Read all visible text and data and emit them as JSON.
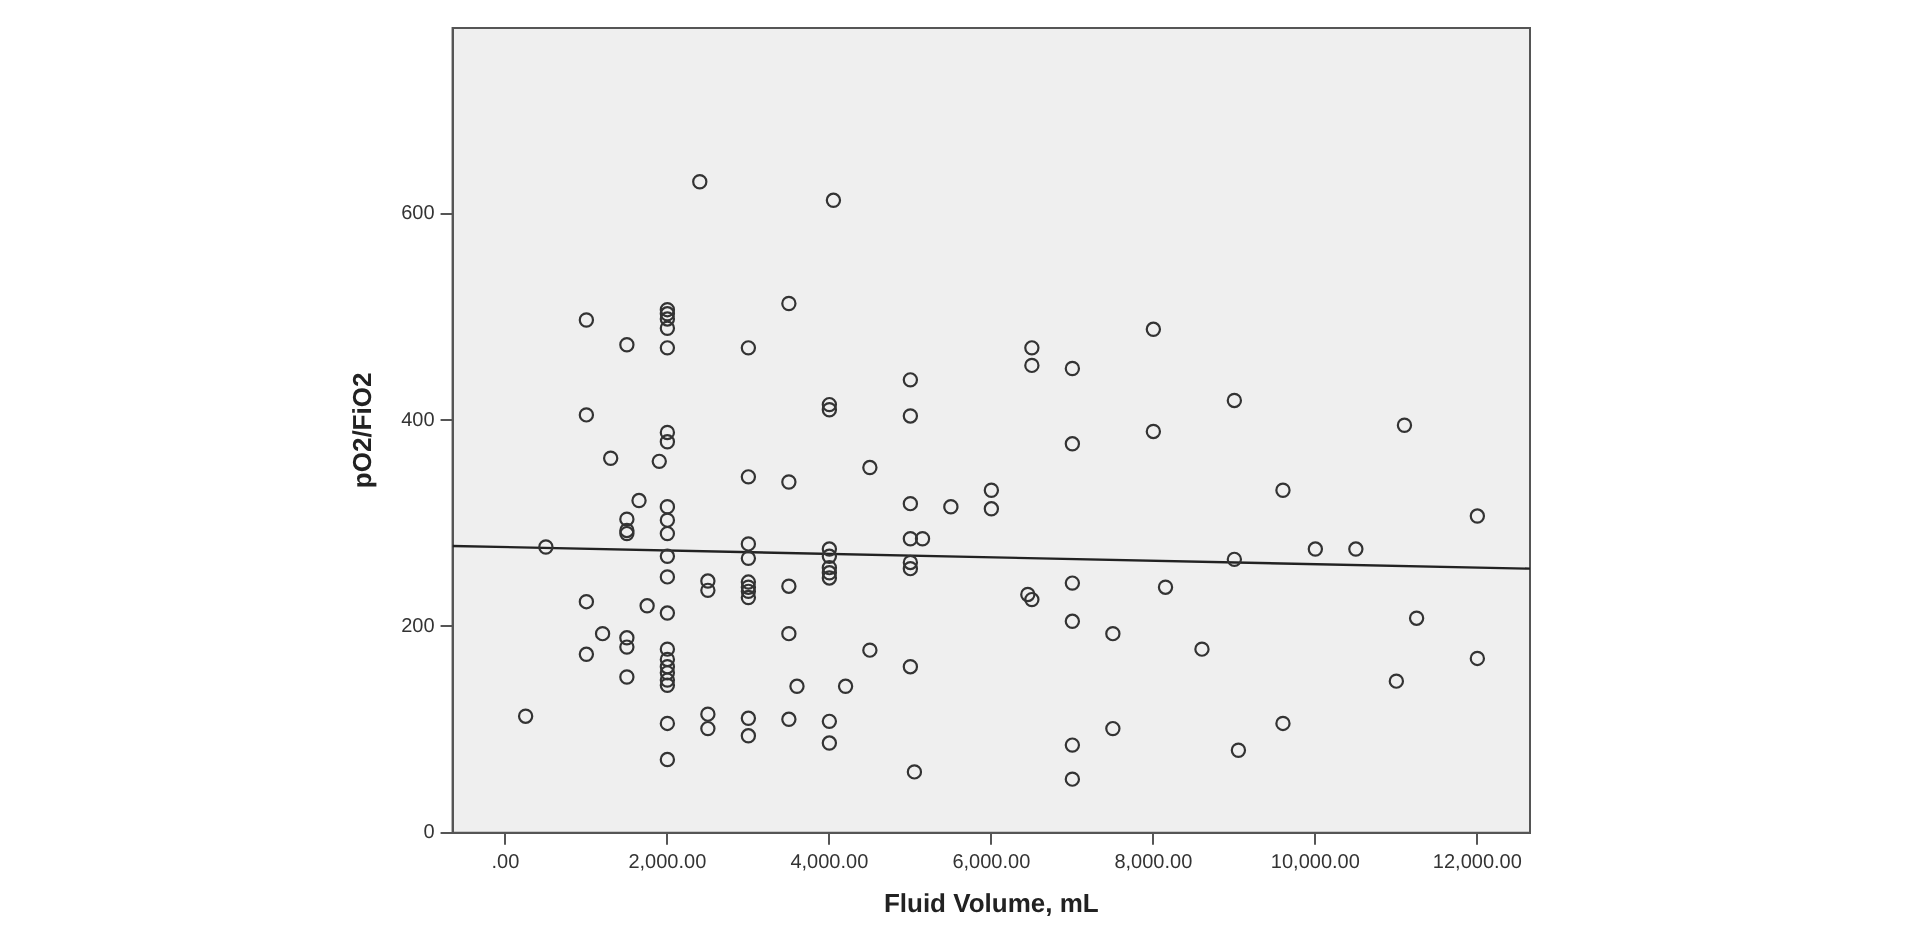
{
  "chart_data": {
    "type": "scatter",
    "xlabel": "Fluid Volume, mL",
    "ylabel": "pO2/FiO2",
    "xlim": [
      -652,
      12650
    ],
    "ylim": [
      0,
      780
    ],
    "xticks": [
      {
        "value": 0,
        "label": ".00"
      },
      {
        "value": 2000,
        "label": "2,000.00"
      },
      {
        "value": 4000,
        "label": "4,000.00"
      },
      {
        "value": 6000,
        "label": "6,000.00"
      },
      {
        "value": 8000,
        "label": "8,000.00"
      },
      {
        "value": 10000,
        "label": "10,000.00"
      },
      {
        "value": 12000,
        "label": "12,000.00"
      }
    ],
    "yticks": [
      0,
      200,
      400,
      600
    ],
    "grid": false,
    "legend": false,
    "series": [
      {
        "marker": "circle",
        "color": "#333333",
        "x": [
          2400,
          1000,
          1500,
          2000,
          2000,
          2000,
          2000,
          2000,
          3000,
          1000,
          2000,
          2000,
          1300,
          1900,
          3000,
          1650,
          2000,
          1500,
          2000,
          1500,
          1500,
          2000,
          500,
          2000,
          3000,
          3000,
          2000,
          2500,
          2500,
          3000,
          3000,
          3000,
          3000,
          1000,
          1750,
          2000,
          1200,
          1500,
          1500,
          1000,
          2000,
          2000,
          2000,
          2000,
          2000,
          2000,
          1500,
          250,
          2000,
          2500,
          2500,
          3000,
          3000,
          2000,
          4050,
          3500,
          4000,
          4000,
          5000,
          5000,
          6500,
          6500,
          7000,
          7000,
          4500,
          3500,
          5000,
          5500,
          6000,
          6000,
          5000,
          5150,
          5000,
          5000,
          4000,
          4000,
          4000,
          4000,
          4000,
          3500,
          6450,
          6500,
          7000,
          7000,
          7500,
          3500,
          4500,
          5000,
          3600,
          4200,
          3500,
          4000,
          4000,
          7500,
          5050,
          7000,
          7000,
          8000,
          8000,
          9000,
          11100,
          9600,
          12000,
          10000,
          10500,
          9000,
          8150,
          11250,
          8600,
          12000,
          11000,
          9600,
          9050
        ],
        "values": [
          631,
          497,
          473,
          507,
          503,
          498,
          489,
          470,
          470,
          405,
          388,
          379,
          363,
          360,
          345,
          322,
          316,
          304,
          303,
          293,
          290,
          290,
          277,
          268,
          280,
          266,
          248,
          244,
          235,
          243,
          238,
          234,
          228,
          224,
          220,
          213,
          193,
          189,
          180,
          173,
          178,
          168,
          161,
          155,
          148,
          143,
          151,
          113,
          106,
          115,
          101,
          111,
          94,
          71,
          613,
          513,
          415,
          410,
          439,
          404,
          470,
          453,
          450,
          377,
          354,
          340,
          319,
          316,
          332,
          314,
          285,
          285,
          262,
          256,
          275,
          268,
          257,
          252,
          247,
          239,
          231,
          226,
          242,
          205,
          193,
          193,
          177,
          161,
          142,
          142,
          110,
          108,
          87,
          101,
          59,
          85,
          52,
          488,
          389,
          419,
          395,
          332,
          307,
          275,
          275,
          265,
          238,
          208,
          178,
          169,
          147,
          106,
          80
        ]
      },
      {
        "type": "line",
        "marker": "none",
        "color": "#222222",
        "x": [
          -652,
          12650
        ],
        "values": [
          278,
          256
        ]
      }
    ]
  }
}
